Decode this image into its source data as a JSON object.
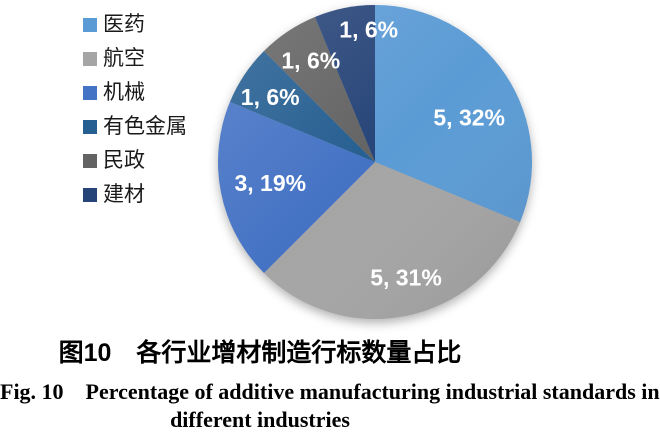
{
  "chart_data": {
    "type": "pie",
    "title": "图10　各行业增材制造行标数量占比",
    "legend_position": "left",
    "start_angle_deg": 0,
    "direction": "clockwise",
    "total": 16,
    "label_format": "value, percent",
    "label_color": "#FFFFFF",
    "slices": [
      {
        "label": "医药",
        "value": 5,
        "percent": "32%",
        "data_label": "5, 32%",
        "color": "#5B9BD5"
      },
      {
        "label": "航空",
        "value": 5,
        "percent": "31%",
        "data_label": "5, 31%",
        "color": "#A5A5A5"
      },
      {
        "label": "机械",
        "value": 3,
        "percent": "19%",
        "data_label": "3, 19%",
        "color": "#4472C4"
      },
      {
        "label": "有色金属",
        "value": 1,
        "percent": "6%",
        "data_label": "1, 6%",
        "color": "#255E91"
      },
      {
        "label": "民政",
        "value": 1,
        "percent": "6%",
        "data_label": "1, 6%",
        "color": "#636363"
      },
      {
        "label": "建材",
        "value": 1,
        "percent": "6%",
        "data_label": "1, 6%",
        "color": "#264478"
      }
    ]
  },
  "caption": {
    "zh": "图10　各行业增材制造行标数量占比",
    "en_line1": "Fig. 10　Percentage of additive manufacturing industrial standards in",
    "en_line2": "different industries"
  }
}
